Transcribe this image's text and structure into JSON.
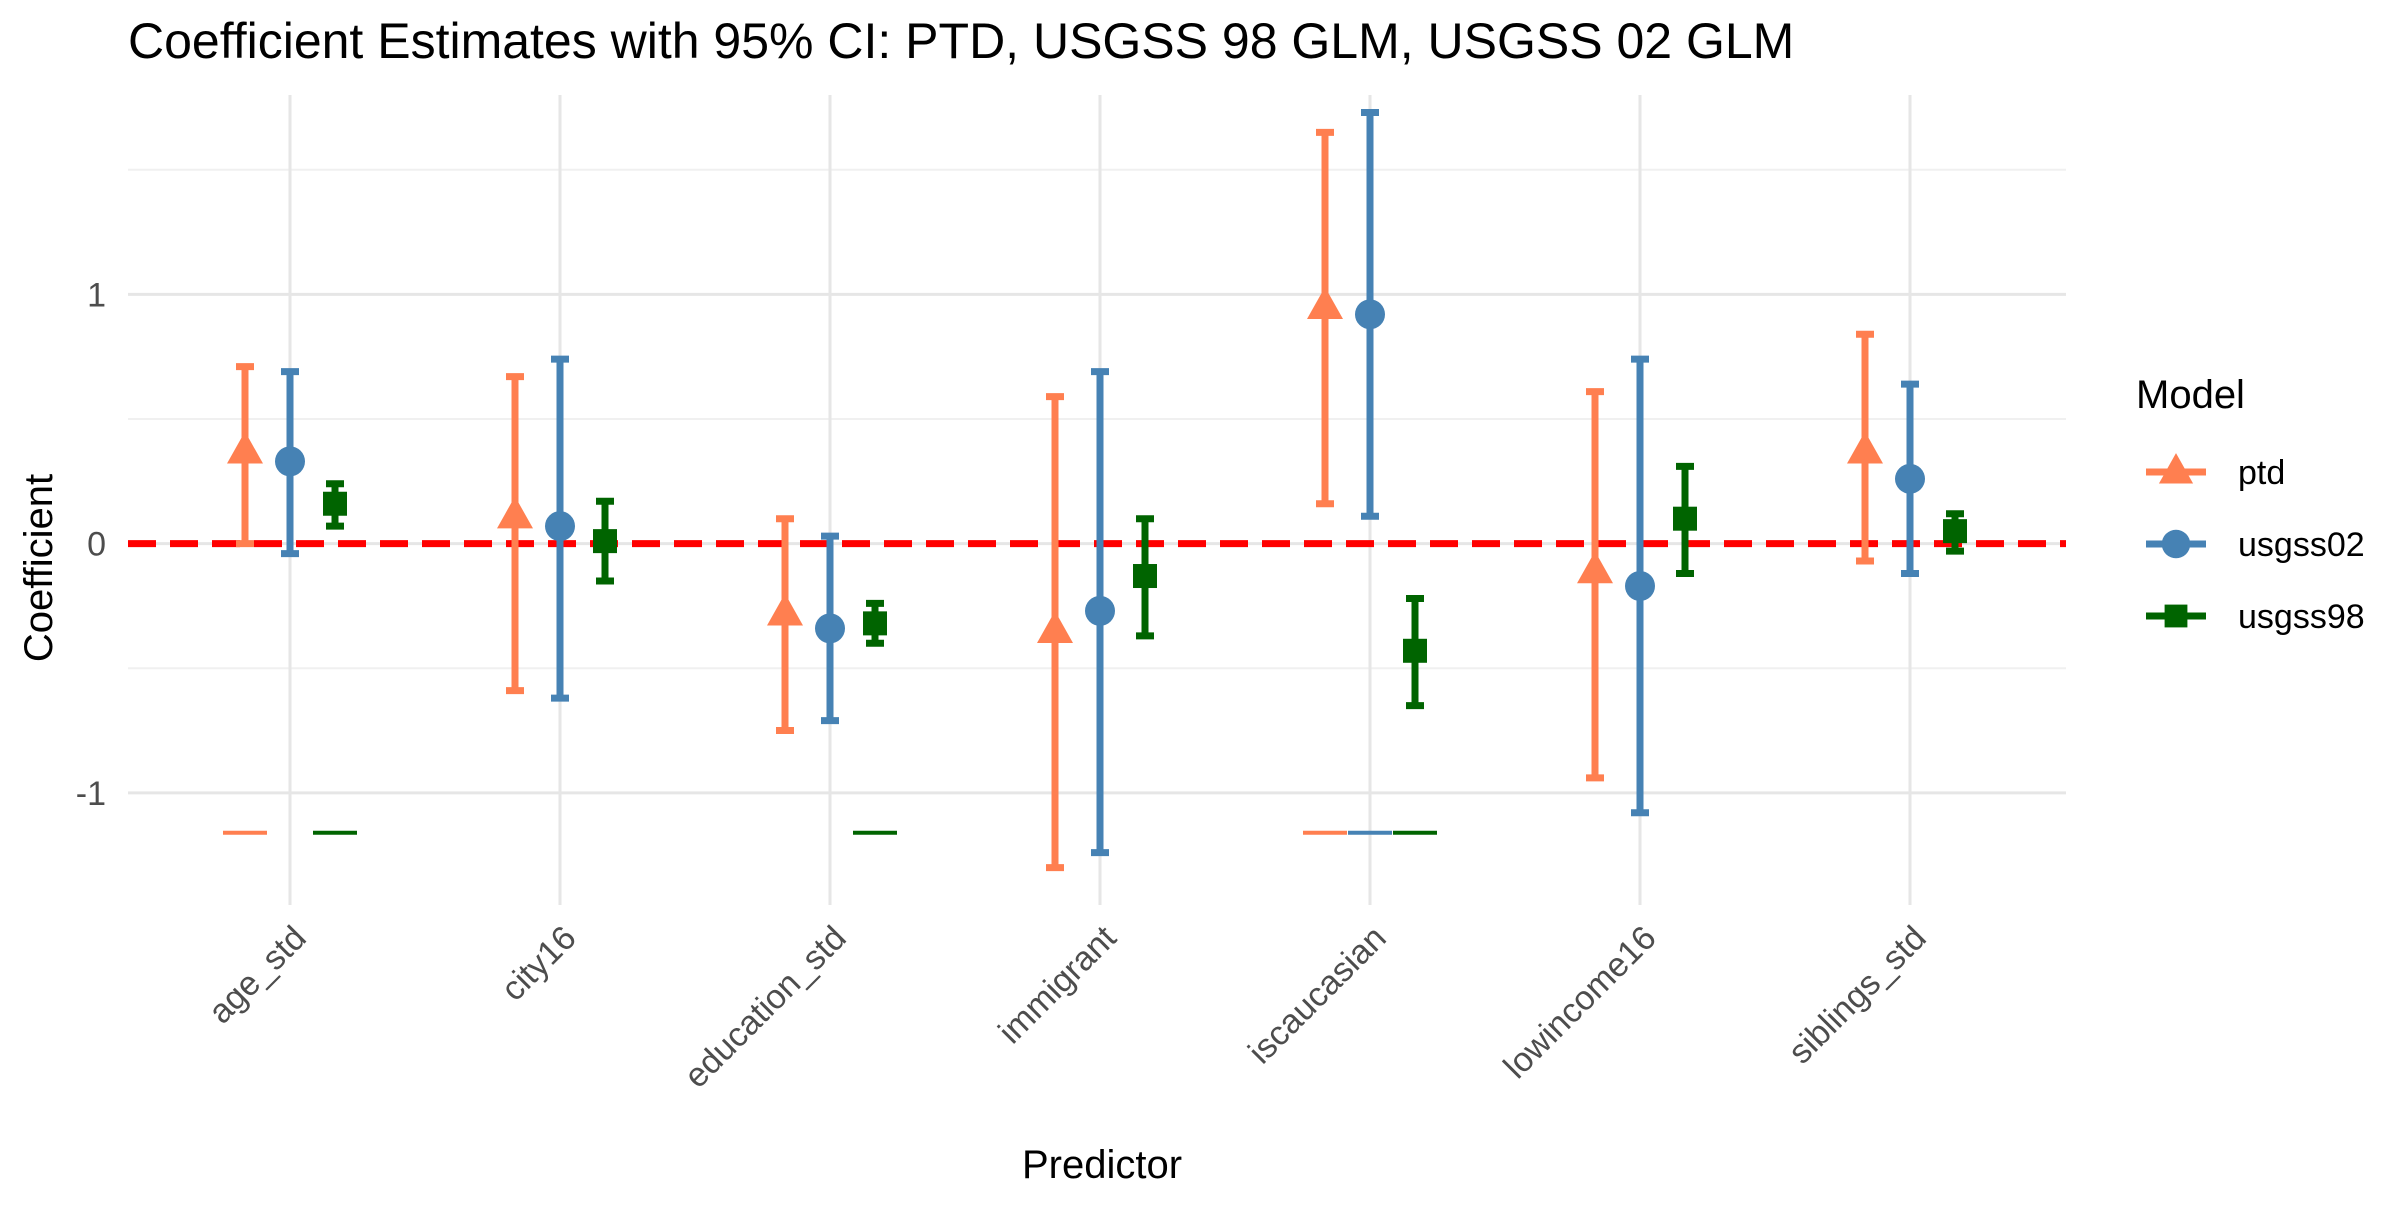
{
  "chart_data": {
    "type": "scatter",
    "title": "Coefficient Estimates with 95% CI: PTD, USGSS 98 GLM, USGSS 02 GLM",
    "xlabel": "Predictor",
    "ylabel": "Coefficient",
    "categories": [
      "age_std",
      "city16",
      "education_std",
      "immigrant",
      "iscaucasian",
      "lowincome16",
      "siblings_std"
    ],
    "ylim": [
      -1.45,
      1.8
    ],
    "yticks": [
      -1,
      0,
      1
    ],
    "ytick_labels": [
      "-1",
      "0",
      "1"
    ],
    "grid": true,
    "reference_line": {
      "y": 0,
      "color": "#ff0000",
      "style": "dashed"
    },
    "legend": {
      "title": "Model",
      "position": "right"
    },
    "series": [
      {
        "name": "ptd",
        "color": "#ff7f50",
        "marker": "triangle",
        "estimate": [
          0.37,
          0.11,
          -0.28,
          -0.35,
          0.95,
          -0.11,
          0.37
        ],
        "lower": [
          0.0,
          -0.59,
          -0.75,
          -1.3,
          0.16,
          -0.94,
          -0.07
        ],
        "upper": [
          0.71,
          0.67,
          0.1,
          0.59,
          1.65,
          0.61,
          0.84
        ]
      },
      {
        "name": "usgss02",
        "color": "#4682b4",
        "marker": "circle",
        "estimate": [
          0.33,
          0.07,
          -0.34,
          -0.27,
          0.92,
          -0.17,
          0.26
        ],
        "lower": [
          -0.04,
          -0.62,
          -0.71,
          -1.24,
          0.11,
          -1.08,
          -0.12
        ],
        "upper": [
          0.69,
          0.74,
          0.03,
          0.69,
          1.73,
          0.74,
          0.64
        ]
      },
      {
        "name": "usgss98",
        "color": "#006400",
        "marker": "square",
        "estimate": [
          0.16,
          0.01,
          -0.32,
          -0.13,
          -0.43,
          0.1,
          0.05
        ],
        "lower": [
          0.07,
          -0.15,
          -0.4,
          -0.37,
          -0.65,
          -0.12,
          -0.03
        ],
        "upper": [
          0.24,
          0.17,
          -0.24,
          0.1,
          -0.22,
          0.31,
          0.12
        ]
      }
    ],
    "bottom_markers": {
      "y": -1.16,
      "items": [
        {
          "category": "age_std",
          "series": "ptd"
        },
        {
          "category": "age_std",
          "series": "usgss98"
        },
        {
          "category": "education_std",
          "series": "usgss98"
        },
        {
          "category": "iscaucasian",
          "series": "ptd"
        },
        {
          "category": "iscaucasian",
          "series": "usgss02"
        },
        {
          "category": "iscaucasian",
          "series": "usgss98"
        }
      ]
    }
  }
}
